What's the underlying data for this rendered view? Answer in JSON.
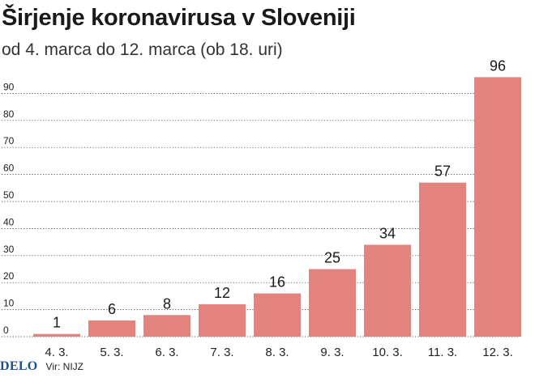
{
  "chart_data": {
    "type": "bar",
    "title": "Širjenje koronavirusa v Sloveniji",
    "subtitle": "od 4. marca do 12. marca (ob 18. uri)",
    "categories": [
      "4. 3.",
      "5. 3.",
      "6. 3.",
      "7. 3.",
      "8. 3.",
      "9. 3.",
      "10. 3.",
      "11. 3.",
      "12. 3."
    ],
    "values": [
      1,
      6,
      8,
      12,
      16,
      25,
      34,
      57,
      96
    ],
    "y_ticks": [
      "0",
      "10",
      "20",
      "30",
      "40",
      "50",
      "60",
      "70",
      "80",
      "90"
    ],
    "ylim": [
      0,
      96
    ],
    "grid": true,
    "bar_color": "#e3837d",
    "data_labels": true
  },
  "footer": {
    "logo": "DELO",
    "source": "Vir: NIJZ"
  },
  "colors": {
    "grid": "#222222",
    "logo": "#1f4e8c"
  }
}
